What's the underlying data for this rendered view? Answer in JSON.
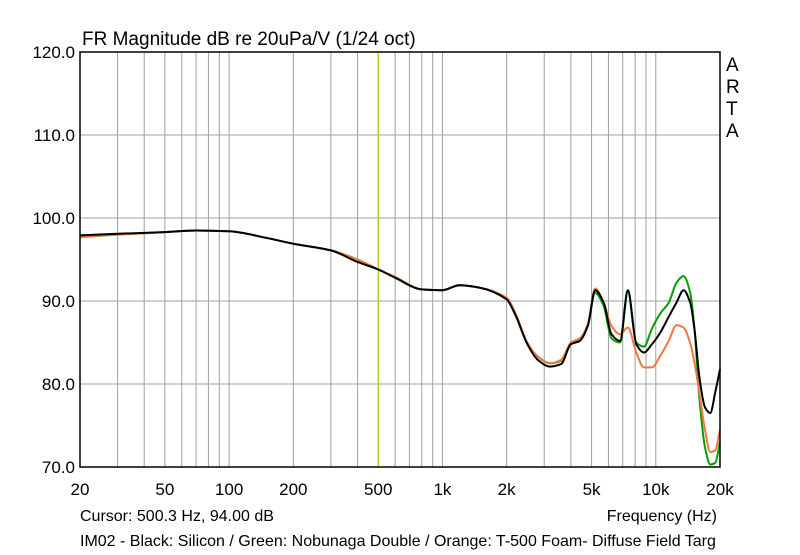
{
  "chart_data": {
    "type": "line",
    "title": "FR Magnitude dB re 20uPa/V (1/24 oct)",
    "xlabel": "Frequency (Hz)",
    "ylabel": "",
    "x_scale": "log",
    "xlim": [
      20,
      20000
    ],
    "ylim": [
      70,
      120
    ],
    "grid": true,
    "y_ticks": [
      {
        "value": 70,
        "label": "70.0"
      },
      {
        "value": 80,
        "label": "80.0"
      },
      {
        "value": 90,
        "label": "90.0"
      },
      {
        "value": 100,
        "label": "100.0"
      },
      {
        "value": 110,
        "label": "110.0"
      },
      {
        "value": 120,
        "label": "120.0"
      }
    ],
    "x_ticks": [
      {
        "value": 20,
        "label": "20"
      },
      {
        "value": 50,
        "label": "50"
      },
      {
        "value": 100,
        "label": "100"
      },
      {
        "value": 200,
        "label": "200"
      },
      {
        "value": 500,
        "label": "500"
      },
      {
        "value": 1000,
        "label": "1k"
      },
      {
        "value": 2000,
        "label": "2k"
      },
      {
        "value": 5000,
        "label": "5k"
      },
      {
        "value": 10000,
        "label": "10k"
      },
      {
        "value": 20000,
        "label": "20k"
      }
    ],
    "cursor": {
      "x": 500.3,
      "y": 94.0,
      "color": "#c8c800"
    },
    "series": [
      {
        "name": "Black: Silicon",
        "color": "#000000",
        "x": [
          20,
          30,
          50,
          70,
          100,
          150,
          200,
          300,
          400,
          500,
          600,
          800,
          1000,
          1200,
          1500,
          2000,
          2200,
          2500,
          2800,
          3200,
          3600,
          4000,
          4400,
          4800,
          5200,
          5700,
          6200,
          6800,
          7400,
          8100,
          8800,
          9600,
          10500,
          11500,
          12500,
          13500,
          14500,
          15200,
          16000,
          17000,
          18000,
          19000,
          20000
        ],
        "y": [
          97.9,
          98.1,
          98.3,
          98.5,
          98.4,
          97.6,
          96.9,
          96.1,
          94.7,
          93.8,
          92.8,
          91.4,
          91.3,
          91.9,
          91.6,
          90.2,
          88.3,
          84.8,
          82.9,
          82.1,
          82.4,
          84.8,
          85.2,
          87.0,
          91.3,
          89.8,
          86.0,
          85.2,
          91.3,
          84.8,
          83.8,
          84.8,
          86.2,
          88.1,
          89.8,
          91.3,
          89.8,
          86.5,
          80.9,
          77.2,
          76.5,
          79.0,
          81.8
        ]
      },
      {
        "name": "Green: Nobunaga Double",
        "color": "#00a000",
        "x": [
          20,
          30,
          50,
          70,
          100,
          150,
          200,
          300,
          400,
          500,
          600,
          800,
          1000,
          1200,
          1500,
          2000,
          2200,
          2500,
          2800,
          3200,
          3600,
          4000,
          4400,
          4800,
          5200,
          5700,
          6200,
          6800,
          7400,
          8100,
          8800,
          9600,
          10500,
          11500,
          12500,
          13500,
          14500,
          15200,
          16000,
          17000,
          18000,
          19000,
          20000
        ],
        "y": [
          97.7,
          98.0,
          98.3,
          98.5,
          98.4,
          97.6,
          96.9,
          96.1,
          95.0,
          93.8,
          92.9,
          91.4,
          91.3,
          91.9,
          91.6,
          90.2,
          88.3,
          84.9,
          83.3,
          82.5,
          82.8,
          84.8,
          85.2,
          87.0,
          91.0,
          89.4,
          85.5,
          85.0,
          91.1,
          85.0,
          84.5,
          86.7,
          88.5,
          89.8,
          92.2,
          93.0,
          91.0,
          86.5,
          78.4,
          72.4,
          70.3,
          70.5,
          73.0
        ]
      },
      {
        "name": "Orange: T-500 Foam",
        "color": "#f07840",
        "x": [
          20,
          30,
          50,
          70,
          100,
          150,
          200,
          300,
          400,
          500,
          600,
          800,
          1000,
          1200,
          1500,
          2000,
          2200,
          2500,
          2800,
          3200,
          3600,
          4000,
          4400,
          4800,
          5200,
          5700,
          6200,
          6800,
          7400,
          8100,
          8800,
          9600,
          10500,
          11500,
          12500,
          13500,
          14500,
          15200,
          16000,
          17000,
          18000,
          19000,
          20000
        ],
        "y": [
          97.7,
          98.0,
          98.3,
          98.5,
          98.4,
          97.6,
          96.9,
          96.1,
          95.0,
          93.8,
          92.9,
          91.4,
          91.3,
          91.9,
          91.6,
          90.4,
          88.5,
          85.0,
          83.3,
          82.5,
          82.9,
          85.0,
          85.5,
          87.2,
          91.5,
          89.8,
          87.0,
          86.0,
          86.8,
          83.8,
          82.0,
          82.0,
          83.4,
          85.2,
          87.1,
          86.8,
          84.9,
          82.5,
          79.0,
          74.5,
          71.8,
          72.0,
          74.5
        ]
      }
    ]
  },
  "arta_label": [
    "A",
    "R",
    "T",
    "A"
  ],
  "cursor_text": "Cursor: 500.3 Hz, 94.00 dB",
  "footer_text": "IM02 - Black: Silicon / Green: Nobunaga Double / Orange: T-500 Foam- Diffuse Field Targ",
  "colors": {
    "grid": "#a0a0a0",
    "frame": "#000000",
    "background": "#ffffff"
  }
}
